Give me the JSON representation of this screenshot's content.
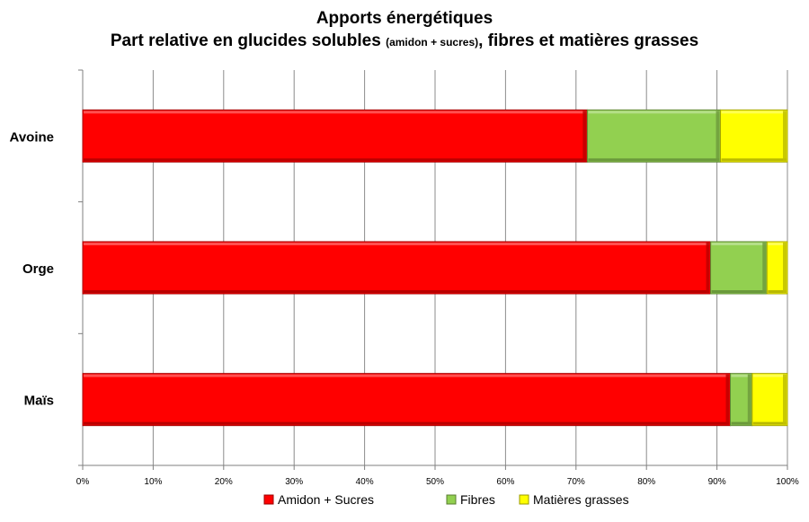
{
  "chart_data": {
    "type": "bar",
    "orientation": "horizontal",
    "stacked": "percent",
    "title": "Apports énergétiques",
    "subtitle_main": "Part relative en glucides solubles",
    "subtitle_small": "(amidon + sucres)",
    "subtitle_tail": ", fibres et matières grasses",
    "categories": [
      "Avoine",
      "Orge",
      "Maïs"
    ],
    "series": [
      {
        "name": "Amidon + Sucres",
        "color": "#ff0000",
        "values": [
          71.6,
          89.1,
          91.9
        ]
      },
      {
        "name": "Fibres",
        "color": "#92d050",
        "values": [
          18.9,
          8.0,
          3.1
        ]
      },
      {
        "name": "Matières grasses",
        "color": "#ffff00",
        "values": [
          9.5,
          2.9,
          5.0
        ]
      }
    ],
    "xlim": [
      0,
      100
    ],
    "xticks": [
      "0%",
      "10%",
      "20%",
      "30%",
      "40%",
      "50%",
      "60%",
      "70%",
      "80%",
      "90%",
      "100%"
    ],
    "grid": "vertical",
    "legend_position": "bottom"
  }
}
